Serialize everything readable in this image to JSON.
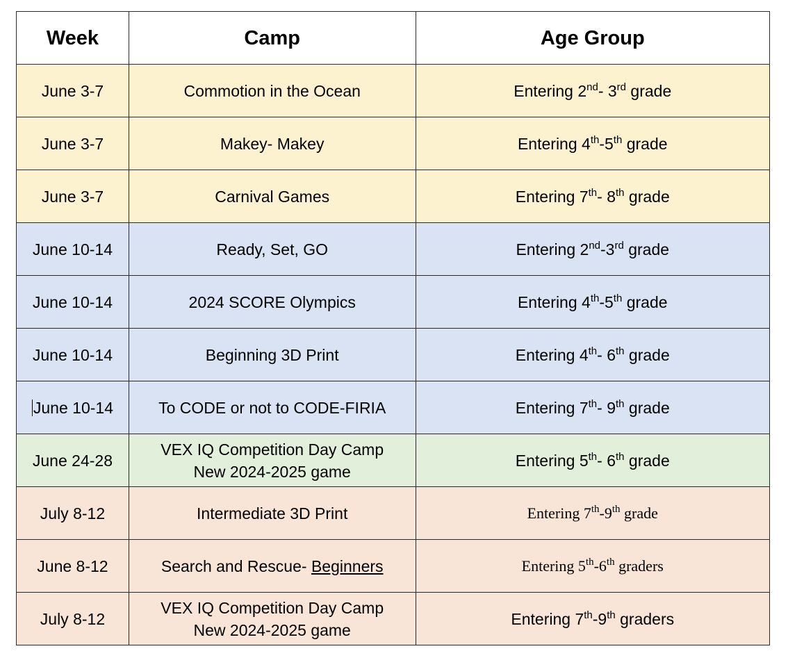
{
  "colors": {
    "yellow": "#fdf2d0",
    "blue": "#dae3f3",
    "green": "#e2efda",
    "peach": "#f8e5d8",
    "header": "#ffffff"
  },
  "headers": [
    "Week",
    "Camp",
    "Age Group"
  ],
  "rows": [
    {
      "group": "yellow",
      "week": "June 3-7",
      "camp": [
        "Commotion in the Ocean"
      ],
      "age": [
        "Entering 2",
        "nd",
        "- 3",
        "rd",
        " grade"
      ]
    },
    {
      "group": "yellow",
      "week": "June 3-7",
      "camp": [
        "Makey- Makey"
      ],
      "age": [
        "Entering 4",
        "th",
        "-5",
        "th",
        " grade"
      ]
    },
    {
      "group": "yellow",
      "week": "June 3-7",
      "camp": [
        "Carnival Games"
      ],
      "age": [
        "Entering 7",
        "th",
        "- 8",
        "th",
        " grade"
      ]
    },
    {
      "group": "blue",
      "week": "June 10-14",
      "camp": [
        "Ready, Set, GO"
      ],
      "age": [
        "Entering 2",
        "nd",
        "-3",
        "rd",
        " grade"
      ]
    },
    {
      "group": "blue",
      "week": "June 10-14",
      "camp": [
        "2024 SCORE Olympics"
      ],
      "age": [
        "Entering 4",
        "th",
        "-5",
        "th",
        " grade"
      ]
    },
    {
      "group": "blue",
      "week": "June 10-14",
      "camp": [
        "Beginning 3D Print"
      ],
      "age": [
        "Entering 4",
        "th",
        "- 6",
        "th",
        " grade"
      ]
    },
    {
      "group": "blue",
      "week": "June 10-14",
      "cursor": true,
      "camp": [
        "To CODE or not to CODE-FIRIA"
      ],
      "age": [
        "Entering 7",
        "th",
        "- 9",
        "th",
        " grade"
      ]
    },
    {
      "group": "green",
      "week": "June 24-28",
      "camp": [
        "VEX IQ Competition Day Camp",
        "New 2024-2025 game"
      ],
      "age": [
        "Entering 5",
        "th",
        "- 6",
        "th",
        " grade"
      ]
    },
    {
      "group": "peach",
      "week": "July 8-12",
      "camp": [
        "Intermediate 3D Print"
      ],
      "age": [
        "Entering 7",
        "th",
        "-9",
        "th",
        " grade"
      ],
      "serif": true
    },
    {
      "group": "peach",
      "week": "June 8-12",
      "camp": [
        "Search and Rescue- ",
        "Beginners"
      ],
      "underline_second": true,
      "age": [
        "Entering 5",
        "th",
        "-6",
        "th",
        " graders"
      ],
      "serif": true
    },
    {
      "group": "peach",
      "week": "July 8-12",
      "camp": [
        "VEX IQ Competition Day Camp",
        "New 2024-2025 game"
      ],
      "age": [
        "Entering 7",
        "th",
        "-9",
        "th",
        " graders"
      ]
    }
  ]
}
